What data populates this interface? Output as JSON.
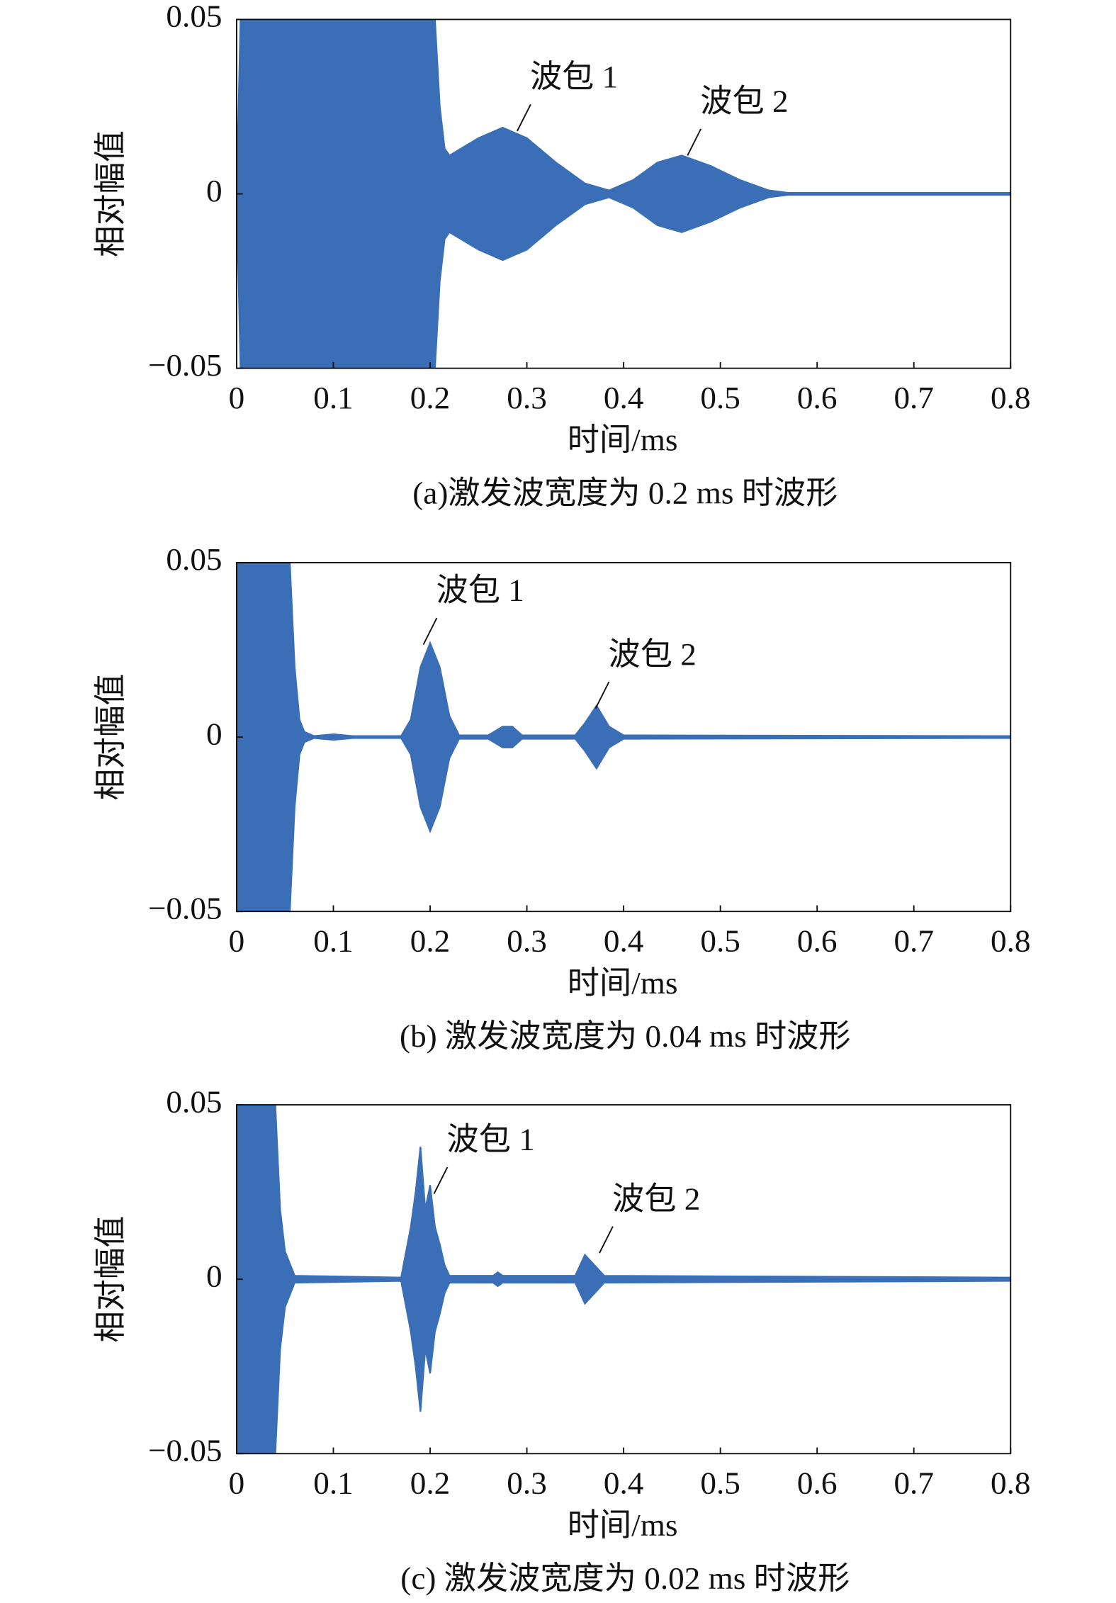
{
  "chart_data": [
    {
      "type": "area",
      "caption": "(a)激发波宽度为 0.2 ms 时波形",
      "xlabel": "时间/ms",
      "ylabel": "相对幅值",
      "color": "#3a6fb7",
      "x": [
        0,
        0.004,
        0.205,
        0.21,
        0.215,
        0.22,
        0.25,
        0.275,
        0.3,
        0.33,
        0.36,
        0.385,
        0.41,
        0.435,
        0.46,
        0.49,
        0.52,
        0.55,
        0.57,
        0.8
      ],
      "values": [
        0,
        0.05,
        0.05,
        0.025,
        0.013,
        0.011,
        0.016,
        0.019,
        0.016,
        0.009,
        0.003,
        0.001,
        0.004,
        0.009,
        0.011,
        0.008,
        0.004,
        0.001,
        0.0003,
        0.0003
      ],
      "xlim": [
        0,
        0.8
      ],
      "ylim": [
        -0.05,
        0.05
      ],
      "xticks": [
        0,
        0.1,
        0.2,
        0.3,
        0.4,
        0.5,
        0.6,
        0.7,
        0.8
      ],
      "yticks": [
        {
          "value": -0.05,
          "label": "−0.05"
        },
        0,
        0.05
      ],
      "annotations": [
        {
          "text": "波包 1",
          "x": 0.29,
          "y": 0.018
        },
        {
          "text": "波包 2",
          "x": 0.466,
          "y": 0.011
        }
      ]
    },
    {
      "type": "area",
      "caption": "(b) 激发波宽度为 0.04 ms 时波形",
      "xlabel": "时间/ms",
      "ylabel": "相对幅值",
      "color": "#3a6fb7",
      "x": [
        0,
        0.055,
        0.06,
        0.065,
        0.07,
        0.08,
        0.1,
        0.12,
        0.17,
        0.18,
        0.19,
        0.2,
        0.21,
        0.22,
        0.23,
        0.26,
        0.275,
        0.285,
        0.295,
        0.35,
        0.36,
        0.372,
        0.385,
        0.4,
        0.8
      ],
      "values": [
        0.05,
        0.05,
        0.02,
        0.005,
        0.0015,
        0.0003,
        0.0008,
        0.0003,
        0.0003,
        0.005,
        0.02,
        0.027,
        0.02,
        0.006,
        0.0005,
        0.0005,
        0.003,
        0.003,
        0.0005,
        0.0005,
        0.004,
        0.009,
        0.003,
        0.0005,
        0.0003
      ],
      "xlim": [
        0,
        0.8
      ],
      "ylim": [
        -0.05,
        0.05
      ],
      "xticks": [
        0,
        0.1,
        0.2,
        0.3,
        0.4,
        0.5,
        0.6,
        0.7,
        0.8
      ],
      "yticks": [
        {
          "value": -0.05,
          "label": "−0.05"
        },
        0,
        0.05
      ],
      "annotations": [
        {
          "text": "波包 1",
          "x": 0.193,
          "y": 0.0265
        },
        {
          "text": "波包 2",
          "x": 0.371,
          "y": 0.0082
        }
      ]
    },
    {
      "type": "area",
      "caption": "(c) 激发波宽度为 0.02 ms 时波形",
      "xlabel": "时间/ms",
      "ylabel": "相对幅值",
      "color": "#3a6fb7",
      "x": [
        0,
        0.04,
        0.045,
        0.05,
        0.06,
        0.17,
        0.18,
        0.185,
        0.19,
        0.195,
        0.2,
        0.205,
        0.21,
        0.215,
        0.22,
        0.265,
        0.27,
        0.275,
        0.35,
        0.36,
        0.37,
        0.38,
        0.8
      ],
      "values": [
        0.05,
        0.05,
        0.02,
        0.008,
        0.001,
        0.0005,
        0.015,
        0.025,
        0.038,
        0.02,
        0.027,
        0.015,
        0.01,
        0.004,
        0.001,
        0.001,
        0.002,
        0.001,
        0.001,
        0.007,
        0.004,
        0.001,
        0.0005
      ],
      "xlim": [
        0,
        0.8
      ],
      "ylim": [
        -0.05,
        0.05
      ],
      "xticks": [
        0,
        0.1,
        0.2,
        0.3,
        0.4,
        0.5,
        0.6,
        0.7,
        0.8
      ],
      "yticks": [
        {
          "value": -0.05,
          "label": "−0.05"
        },
        0,
        0.05
      ],
      "annotations": [
        {
          "text": "波包 1",
          "x": 0.204,
          "y": 0.0245
        },
        {
          "text": "波包 2",
          "x": 0.375,
          "y": 0.0075
        }
      ]
    }
  ]
}
